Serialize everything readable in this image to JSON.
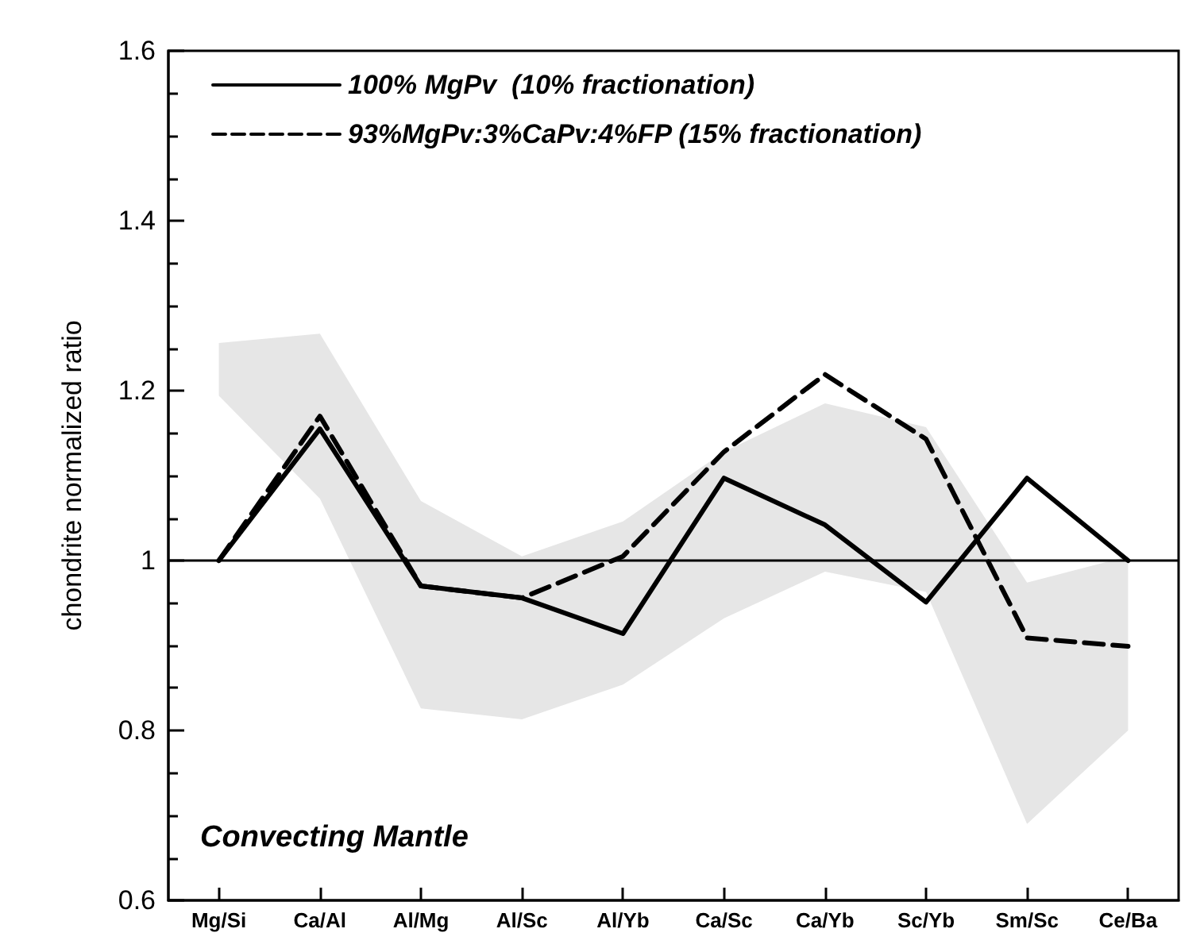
{
  "chart_data": {
    "type": "line",
    "ylabel": "chondrite normalized ratio",
    "categories": [
      "Mg/Si",
      "Ca/Al",
      "Al/Mg",
      "Al/Sc",
      "Al/Yb",
      "Ca/Sc",
      "Ca/Yb",
      "Sc/Yb",
      "Sm/Sc",
      "Ce/Ba"
    ],
    "series": [
      {
        "name": "100% MgPv  (10% fractionation)",
        "color": "#000000",
        "line_style": "solid",
        "values": [
          1.0,
          1.155,
          0.97,
          0.956,
          0.914,
          1.097,
          1.042,
          0.951,
          1.097,
          1.0
        ]
      },
      {
        "name": "93%MgPv:3%CaPv:4%FP (15% fractionation)",
        "color": "#000000",
        "line_style": "dashed",
        "values": [
          1.0,
          1.17,
          0.97,
          0.956,
          1.005,
          1.128,
          1.219,
          1.143,
          0.909,
          0.899
        ]
      },
      {
        "type": "area",
        "color": "#e6e6e6",
        "values": [
          null,
          null,
          null,
          null,
          null,
          null,
          null,
          null,
          null,
          null
        ],
        "lower": [
          1.194,
          1.073,
          0.826,
          0.813,
          0.854,
          0.932,
          0.987,
          0.963,
          0.69,
          0.8
        ],
        "upper": [
          1.256,
          1.267,
          1.07,
          1.005,
          1.046,
          1.128,
          1.185,
          1.157,
          0.974,
          1.005
        ]
      }
    ],
    "ylim": [
      0.6,
      1.6
    ],
    "yticks": [
      0.6,
      0.8,
      1,
      1.2,
      1.4,
      1.6
    ],
    "grid": false,
    "legend": "top left",
    "marker": "none",
    "ref_lines": [
      {
        "axis": "y",
        "value": 1,
        "color": "#000000"
      }
    ],
    "annotations": [
      "Convecting Mantle"
    ]
  }
}
